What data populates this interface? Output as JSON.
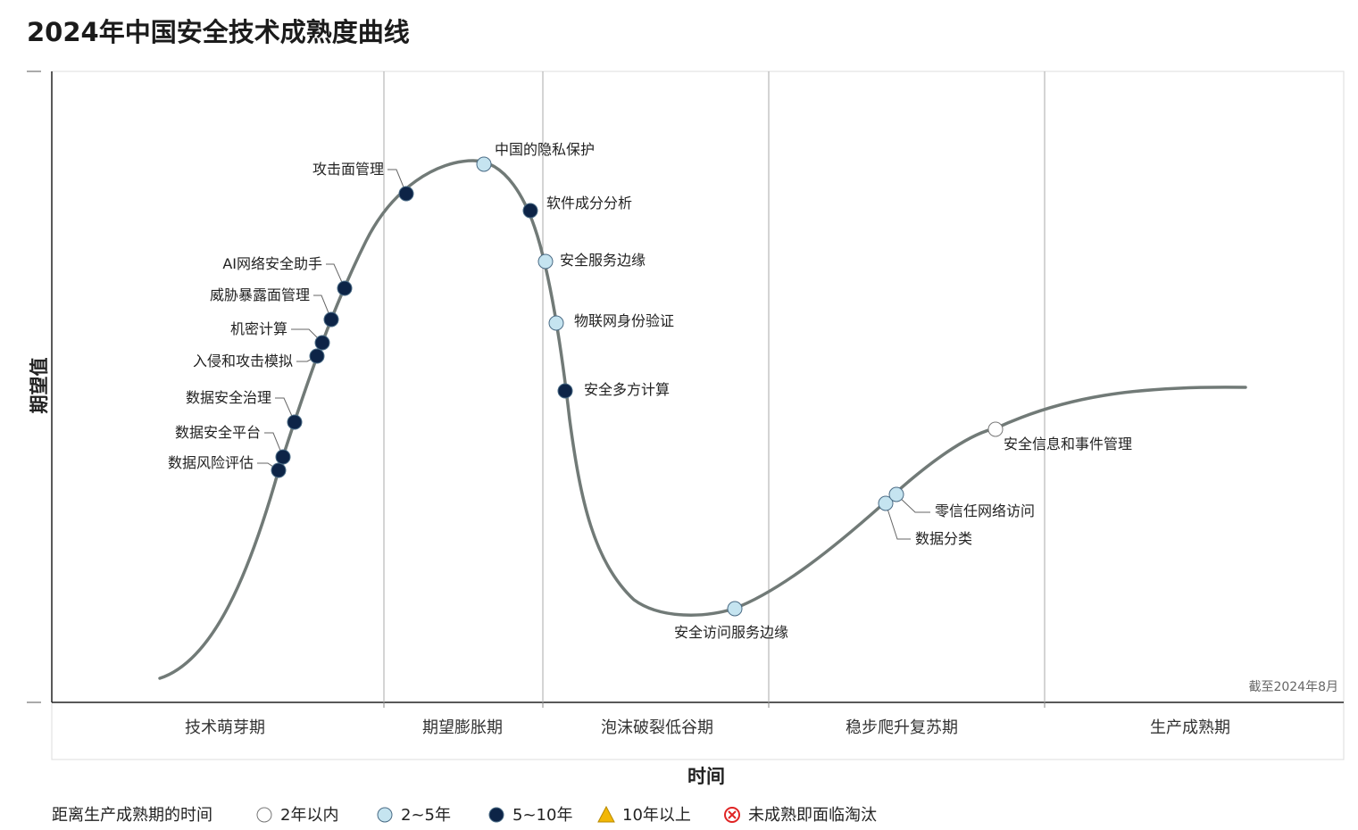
{
  "chart_data": {
    "type": "line",
    "title": "2024年中国安全技术成熟度曲线",
    "xlabel": "时间",
    "ylabel": "期望值",
    "as_of": "截至2024年8月",
    "phases": [
      "技术萌芽期",
      "期望膨胀期",
      "泡沫破裂低谷期",
      "稳步爬升复苏期",
      "生产成熟期"
    ],
    "legend": {
      "title": "距离生产成熟期的时间",
      "items": [
        {
          "key": "lt2",
          "label": "2年以内",
          "color": "#ffffff"
        },
        {
          "key": "2to5",
          "label": "2~5年",
          "color": "#c5e4f0"
        },
        {
          "key": "5to10",
          "label": "5~10年",
          "color": "#0d2447"
        },
        {
          "key": "gt10",
          "label": "10年以上",
          "color": "#f2b705"
        },
        {
          "key": "obsolete",
          "label": "未成熟即面临淘汰",
          "color": "#e02424"
        }
      ]
    },
    "points": [
      {
        "name": "数据风险评估",
        "category": "5to10"
      },
      {
        "name": "数据安全平台",
        "category": "5to10"
      },
      {
        "name": "数据安全治理",
        "category": "5to10"
      },
      {
        "name": "入侵和攻击模拟",
        "category": "5to10"
      },
      {
        "name": "机密计算",
        "category": "5to10"
      },
      {
        "name": "威胁暴露面管理",
        "category": "5to10"
      },
      {
        "name": "AI网络安全助手",
        "category": "5to10"
      },
      {
        "name": "攻击面管理",
        "category": "5to10"
      },
      {
        "name": "中国的隐私保护",
        "category": "2to5"
      },
      {
        "name": "软件成分分析",
        "category": "5to10"
      },
      {
        "name": "安全服务边缘",
        "category": "2to5"
      },
      {
        "name": "物联网身份验证",
        "category": "2to5"
      },
      {
        "name": "安全多方计算",
        "category": "5to10"
      },
      {
        "name": "安全访问服务边缘",
        "category": "2to5"
      },
      {
        "name": "数据分类",
        "category": "2to5"
      },
      {
        "name": "零信任网络访问",
        "category": "2to5"
      },
      {
        "name": "安全信息和事件管理",
        "category": "lt2"
      }
    ]
  }
}
